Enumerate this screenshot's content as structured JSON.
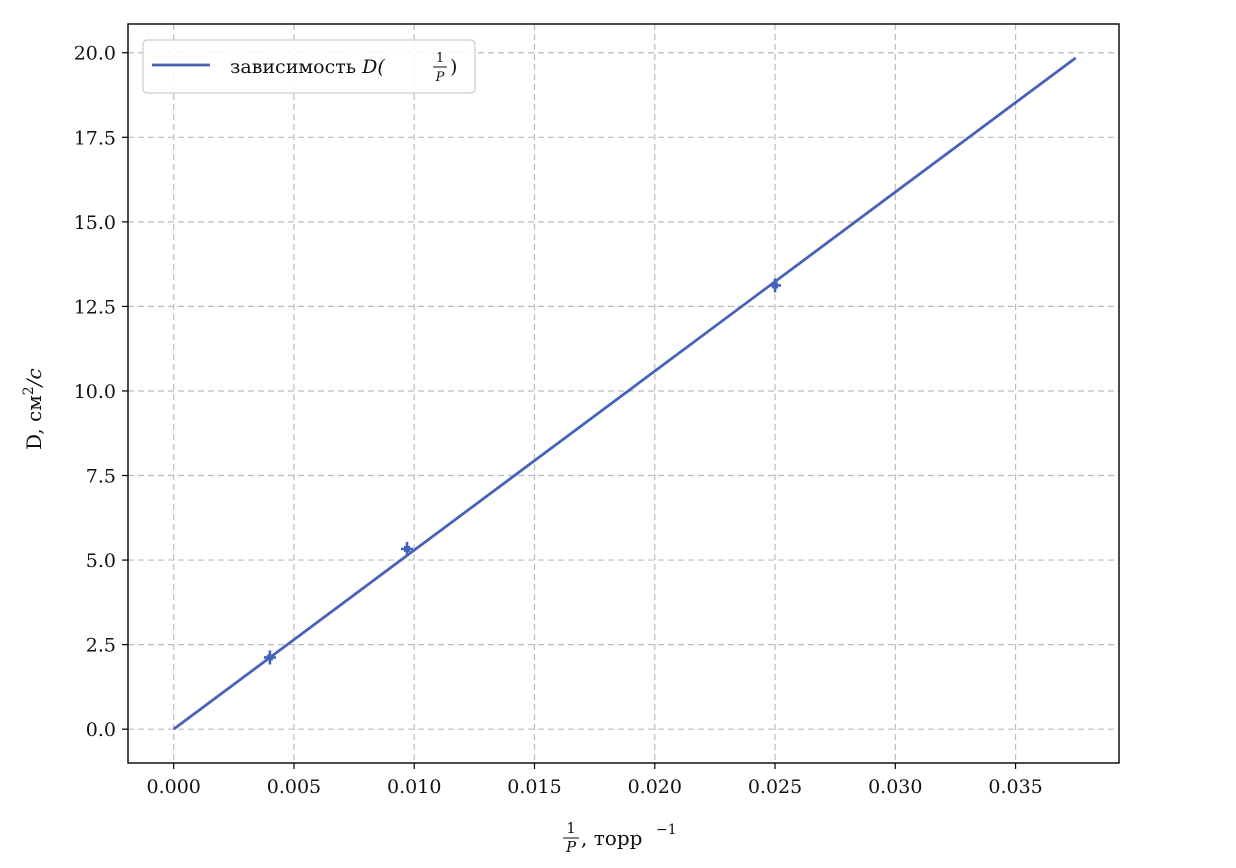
{
  "chart_data": {
    "type": "line",
    "xlabel_num": "1",
    "xlabel_den": "P",
    "xlabel_rest": ", торр",
    "xlabel_sup": "−1",
    "ylabel_main": "D, см",
    "ylabel_sup": "2",
    "ylabel_tail": "/c",
    "xlim": [
      -0.0019,
      0.0393
    ],
    "ylim": [
      -1.0,
      20.85
    ],
    "xticks": [
      0.0,
      0.005,
      0.01,
      0.015,
      0.02,
      0.025,
      0.03,
      0.035
    ],
    "xtick_labels": [
      "0.000",
      "0.005",
      "0.010",
      "0.015",
      "0.020",
      "0.025",
      "0.030",
      "0.035"
    ],
    "yticks": [
      0.0,
      2.5,
      5.0,
      7.5,
      10.0,
      12.5,
      15.0,
      17.5,
      20.0
    ],
    "ytick_labels": [
      "0.0",
      "2.5",
      "5.0",
      "7.5",
      "10.0",
      "12.5",
      "15.0",
      "17.5",
      "20.0"
    ],
    "grid": true,
    "legend_position": "top-left",
    "color": "#4563b8",
    "series": [
      {
        "name": "зависимость D(1/P)",
        "kind": "line",
        "x": [
          0.0,
          0.0375
        ],
        "y": [
          0.0,
          19.85
        ]
      },
      {
        "kind": "errorbar-points",
        "x": [
          0.004,
          0.0097,
          0.025
        ],
        "y": [
          2.12,
          5.33,
          13.12
        ]
      }
    ],
    "legend": {
      "text": "зависимость ",
      "math": "D(",
      "frac_num": "1",
      "frac_den": "P",
      "close": ")"
    }
  }
}
